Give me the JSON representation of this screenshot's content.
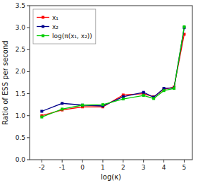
{
  "chart_data": {
    "type": "line",
    "x": [
      -2,
      -1,
      0,
      1,
      2,
      3,
      3.5,
      4,
      4.5,
      5
    ],
    "series": [
      {
        "name": "x₁",
        "color": "#FF0000",
        "values": [
          1.0,
          1.13,
          1.2,
          1.2,
          1.47,
          1.5,
          1.43,
          1.6,
          1.65,
          2.85
        ]
      },
      {
        "name": "x₂",
        "color": "#00008B",
        "values": [
          1.1,
          1.28,
          1.24,
          1.22,
          1.43,
          1.53,
          1.42,
          1.62,
          1.63,
          3.0
        ]
      },
      {
        "name": "log(π(x₁, x₂))",
        "color": "#00CC00",
        "values": [
          0.97,
          1.15,
          1.24,
          1.25,
          1.38,
          1.46,
          1.39,
          1.57,
          1.62,
          3.02
        ]
      }
    ],
    "x_label": "log(κ)",
    "y_label": "Ratio of ESS per second",
    "xlim": [
      -2.6,
      5.4
    ],
    "ylim": [
      0.0,
      3.5
    ],
    "xticks": [
      -2,
      -1,
      0,
      1,
      2,
      3,
      4,
      5
    ],
    "yticks": [
      {
        "value": 0.0,
        "label": "0.0"
      },
      0.5,
      {
        "value": 1.0,
        "label": "1.0"
      },
      1.5,
      {
        "value": 2.0,
        "label": "2.0"
      },
      2.5,
      {
        "value": 3.0,
        "label": "3.0"
      },
      3.5
    ],
    "marker": "square",
    "legend": "upper left",
    "grid": false
  }
}
